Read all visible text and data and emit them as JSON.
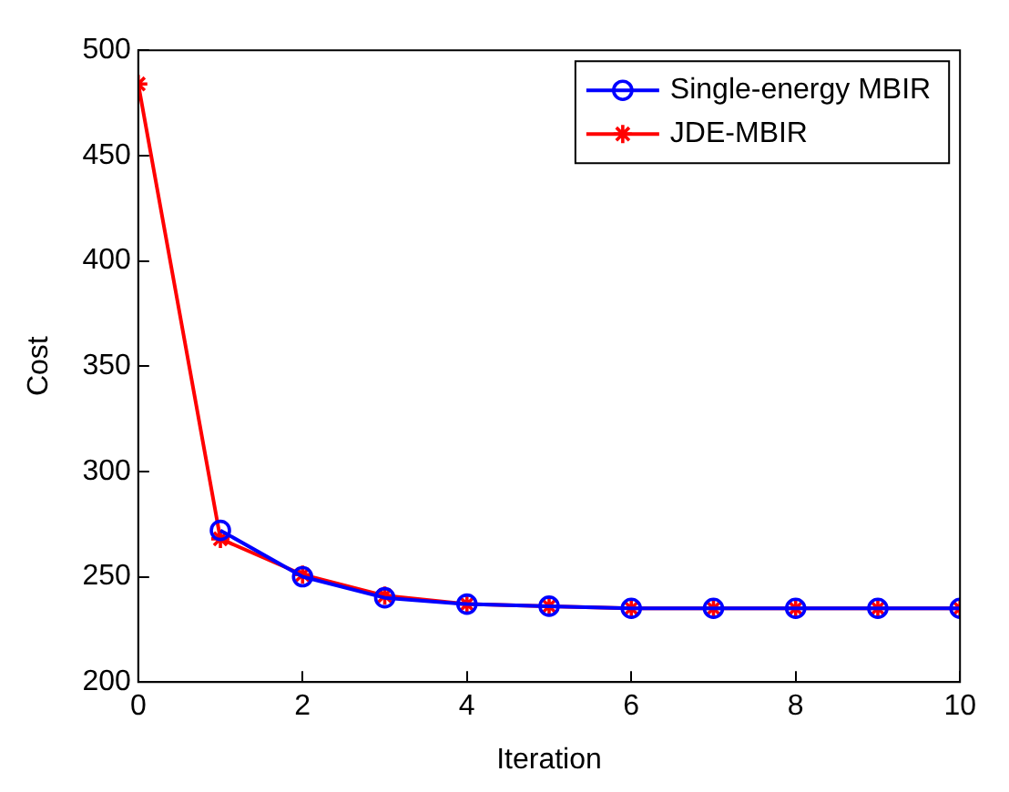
{
  "chart_data": {
    "type": "line",
    "xlabel": "Iteration",
    "ylabel": "Cost",
    "x": [
      0,
      1,
      2,
      3,
      4,
      5,
      6,
      7,
      8,
      9,
      10
    ],
    "series": [
      {
        "name": "Single-energy MBIR",
        "color": "#0000ff",
        "marker": "circle",
        "values": [
          null,
          272,
          250,
          240,
          237,
          236,
          235,
          235,
          235,
          235,
          235
        ]
      },
      {
        "name": "JDE-MBIR",
        "color": "#ff0000",
        "marker": "cross",
        "values": [
          484,
          268,
          251,
          241,
          237,
          236,
          235,
          235,
          235,
          235,
          235
        ]
      }
    ],
    "xlim": [
      0,
      10
    ],
    "xticks": [
      0,
      2,
      4,
      6,
      8,
      10
    ],
    "ylim": [
      200,
      500
    ],
    "yticks": [
      200,
      250,
      300,
      350,
      400,
      450,
      500
    ],
    "grid": false,
    "legend": "top right",
    "line_style": "solid"
  }
}
